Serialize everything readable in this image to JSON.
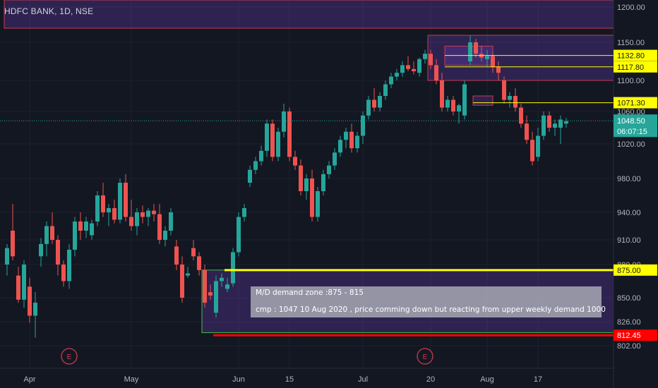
{
  "header": {
    "title": "HDFC BANK, 1D, NSE"
  },
  "colors": {
    "background": "#131722",
    "up": "#26a69a",
    "down": "#ef5350",
    "grid": "#1c2030",
    "text": "#b2b5be",
    "supply_fill": "#3a2b5c",
    "line_yellow": "#ffff00",
    "line_red": "#ff0000"
  },
  "chart_data": {
    "type": "candlestick",
    "symbol": "HDFC BANK",
    "interval": "1D",
    "exchange": "NSE",
    "ylim": [
      785,
      1225
    ],
    "y_ticks": [
      {
        "value": 1200,
        "label": "1200.00"
      },
      {
        "value": 1150,
        "label": "1150.00"
      },
      {
        "value": 1100,
        "label": "1100.00"
      },
      {
        "value": 1060,
        "label": "1060.00"
      },
      {
        "value": 1020,
        "label": "1020.00"
      },
      {
        "value": 980,
        "label": "980.00"
      },
      {
        "value": 940,
        "label": "940.00"
      },
      {
        "value": 910,
        "label": "910.00"
      },
      {
        "value": 880,
        "label": "880.00"
      },
      {
        "value": 850,
        "label": "850.00"
      },
      {
        "value": 826,
        "label": "826.00"
      },
      {
        "value": 802,
        "label": "802.00"
      }
    ],
    "x_ticks": [
      {
        "bar": 4,
        "label": "Apr"
      },
      {
        "bar": 22,
        "label": "May"
      },
      {
        "bar": 41,
        "label": "Jun"
      },
      {
        "bar": 50,
        "label": "15"
      },
      {
        "bar": 63,
        "label": "Jul"
      },
      {
        "bar": 75,
        "label": "20"
      },
      {
        "bar": 85,
        "label": "Aug"
      },
      {
        "bar": 94,
        "label": "17"
      }
    ],
    "events": [
      {
        "bar": 11,
        "label": "E"
      },
      {
        "bar": 74,
        "label": "E"
      }
    ],
    "candles": [
      [
        880,
        905,
        870,
        900
      ],
      [
        920,
        950,
        885,
        890
      ],
      [
        870,
        878,
        845,
        848
      ],
      [
        848,
        885,
        840,
        880
      ],
      [
        860,
        868,
        825,
        832
      ],
      [
        832,
        855,
        810,
        845
      ],
      [
        890,
        912,
        878,
        905
      ],
      [
        905,
        930,
        890,
        925
      ],
      [
        925,
        940,
        905,
        910
      ],
      [
        910,
        915,
        870,
        880
      ],
      [
        880,
        885,
        860,
        865
      ],
      [
        865,
        905,
        858,
        898
      ],
      [
        898,
        935,
        890,
        930
      ],
      [
        930,
        940,
        910,
        920
      ],
      [
        920,
        935,
        912,
        930
      ],
      [
        915,
        932,
        910,
        928
      ],
      [
        930,
        965,
        925,
        960
      ],
      [
        960,
        975,
        935,
        940
      ],
      [
        940,
        950,
        925,
        945
      ],
      [
        945,
        955,
        928,
        932
      ],
      [
        932,
        980,
        928,
        975
      ],
      [
        975,
        985,
        930,
        935
      ],
      [
        935,
        955,
        920,
        925
      ],
      [
        925,
        945,
        915,
        940
      ],
      [
        940,
        948,
        928,
        935
      ],
      [
        935,
        945,
        925,
        942
      ],
      [
        942,
        950,
        930,
        938
      ],
      [
        938,
        950,
        905,
        910
      ],
      [
        910,
        925,
        902,
        920
      ],
      [
        920,
        945,
        915,
        940
      ],
      [
        902,
        910,
        875,
        880
      ],
      [
        880,
        890,
        845,
        850
      ],
      [
        870,
        878,
        868,
        872
      ],
      [
        900,
        910,
        885,
        890
      ],
      [
        890,
        895,
        870,
        875
      ],
      [
        875,
        880,
        840,
        845
      ],
      [
        855,
        862,
        848,
        852
      ],
      [
        835,
        870,
        830,
        865
      ],
      [
        865,
        872,
        860,
        868
      ],
      [
        858,
        868,
        855,
        862
      ],
      [
        863,
        900,
        860,
        895
      ],
      [
        895,
        940,
        890,
        935
      ],
      [
        935,
        950,
        930,
        945
      ],
      [
        975,
        995,
        970,
        990
      ],
      [
        990,
        1005,
        985,
        1000
      ],
      [
        1000,
        1018,
        995,
        1012
      ],
      [
        1012,
        1050,
        1005,
        1045
      ],
      [
        1045,
        1050,
        1000,
        1005
      ],
      [
        1005,
        1040,
        1000,
        1035
      ],
      [
        1035,
        1070,
        1028,
        1060
      ],
      [
        1060,
        1065,
        1000,
        1005
      ],
      [
        1005,
        1012,
        990,
        995
      ],
      [
        995,
        1002,
        960,
        965
      ],
      [
        965,
        985,
        955,
        980
      ],
      [
        980,
        990,
        930,
        935
      ],
      [
        935,
        970,
        930,
        965
      ],
      [
        965,
        990,
        960,
        985
      ],
      [
        985,
        1000,
        980,
        995
      ],
      [
        995,
        1015,
        990,
        1010
      ],
      [
        1010,
        1030,
        1005,
        1025
      ],
      [
        1025,
        1040,
        1015,
        1035
      ],
      [
        1035,
        1045,
        1010,
        1015
      ],
      [
        1015,
        1035,
        1010,
        1030
      ],
      [
        1030,
        1060,
        1020,
        1055
      ],
      [
        1055,
        1080,
        1050,
        1075
      ],
      [
        1075,
        1090,
        1060,
        1065
      ],
      [
        1065,
        1085,
        1060,
        1080
      ],
      [
        1080,
        1100,
        1075,
        1095
      ],
      [
        1095,
        1110,
        1090,
        1105
      ],
      [
        1105,
        1115,
        1100,
        1110
      ],
      [
        1110,
        1125,
        1105,
        1120
      ],
      [
        1120,
        1132,
        1112,
        1115
      ],
      [
        1115,
        1125,
        1108,
        1112
      ],
      [
        1110,
        1130,
        1105,
        1128
      ],
      [
        1128,
        1140,
        1122,
        1135
      ],
      [
        1135,
        1140,
        1115,
        1120
      ],
      [
        1120,
        1128,
        1095,
        1100
      ],
      [
        1100,
        1110,
        1060,
        1065
      ],
      [
        1065,
        1080,
        1060,
        1075
      ],
      [
        1075,
        1080,
        1055,
        1060
      ],
      [
        1060,
        1070,
        1045,
        1068
      ],
      [
        1055,
        1100,
        1050,
        1095
      ],
      [
        1125,
        1160,
        1120,
        1150
      ],
      [
        1150,
        1155,
        1130,
        1135
      ],
      [
        1135,
        1145,
        1125,
        1130
      ],
      [
        1128,
        1140,
        1118,
        1132
      ],
      [
        1132,
        1138,
        1110,
        1118
      ],
      [
        1118,
        1125,
        1100,
        1110
      ],
      [
        1100,
        1105,
        1070,
        1075
      ],
      [
        1075,
        1085,
        1065,
        1080
      ],
      [
        1080,
        1090,
        1060,
        1065
      ],
      [
        1065,
        1070,
        1040,
        1045
      ],
      [
        1045,
        1055,
        1020,
        1025
      ],
      [
        1025,
        1035,
        995,
        1000
      ],
      [
        1005,
        1040,
        1000,
        1030
      ],
      [
        1030,
        1060,
        1025,
        1055
      ],
      [
        1055,
        1060,
        1035,
        1040
      ],
      [
        1040,
        1050,
        1030,
        1045
      ],
      [
        1040,
        1055,
        1020,
        1050
      ],
      [
        1045,
        1052,
        1040,
        1048
      ]
    ],
    "zones": [
      {
        "type": "supply",
        "top": 1225,
        "bottom": 1170,
        "bar_start": 0,
        "bar_end": 120
      },
      {
        "type": "supply",
        "top": 1160,
        "bottom": 1100,
        "bar_start": 75,
        "bar_end": 120
      },
      {
        "type": "supply",
        "top": 1145,
        "bottom": 1120,
        "bar_start": 78,
        "bar_end": 86
      },
      {
        "type": "supply",
        "top": 1080,
        "bottom": 1068,
        "bar_start": 83,
        "bar_end": 86
      },
      {
        "type": "demand",
        "top": 875,
        "bottom": 815,
        "bar_start": 35,
        "bar_end": 120
      }
    ],
    "levels": [
      {
        "value": 1132.8,
        "label": "1132.80",
        "bar_start": 78,
        "color": "#ffff00"
      },
      {
        "value": 1117.8,
        "label": "1117.80",
        "bar_start": 78,
        "color": "#ffff00"
      },
      {
        "value": 1071.3,
        "label": "1071.30",
        "bar_start": 83,
        "color": "#ffff00"
      },
      {
        "value": 875.0,
        "label": "875.00",
        "bar_start": 39,
        "color": "#ffff00"
      },
      {
        "value": 812.45,
        "label": "812.45",
        "bar_start": 37,
        "color": "#ff0000"
      }
    ],
    "last_price": {
      "value": 1048.5,
      "label": "1048.50",
      "countdown": "06:07:15"
    },
    "annotation": {
      "line1": "M/D  demand zone :875 - 815",
      "line2": "cmp : 1047 10 Aug 2020 , price comming down but reacting from upper weekly demand 1000"
    }
  }
}
